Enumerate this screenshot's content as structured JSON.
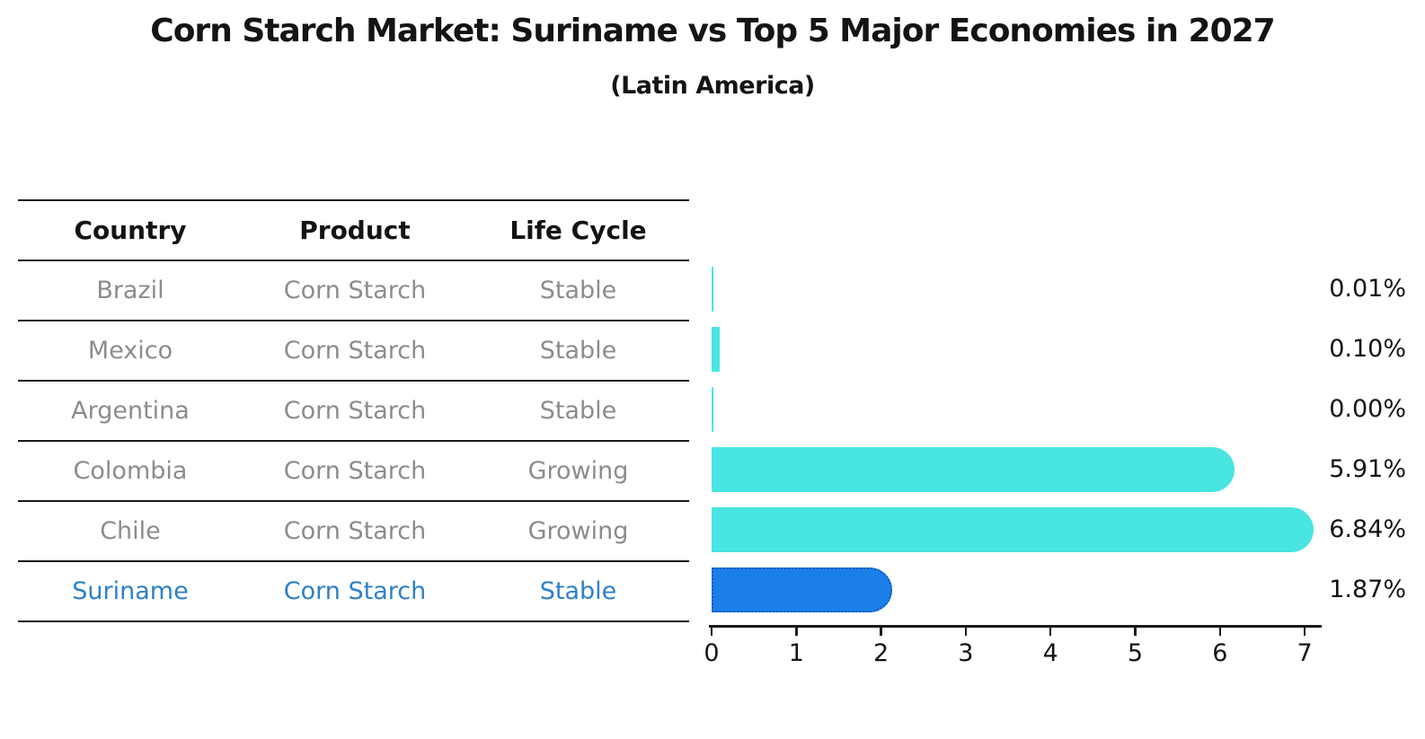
{
  "title": "Corn Starch Market: Suriname vs Top 5 Major Economies in 2027",
  "subtitle": "(Latin America)",
  "table": {
    "headers": [
      "Country",
      "Product",
      "Life Cycle"
    ],
    "rows": [
      {
        "country": "Brazil",
        "product": "Corn Starch",
        "life_cycle": "Stable",
        "highlight": false
      },
      {
        "country": "Mexico",
        "product": "Corn Starch",
        "life_cycle": "Stable",
        "highlight": false
      },
      {
        "country": "Argentina",
        "product": "Corn Starch",
        "life_cycle": "Stable",
        "highlight": false
      },
      {
        "country": "Colombia",
        "product": "Corn Starch",
        "life_cycle": "Growing",
        "highlight": false
      },
      {
        "country": "Chile",
        "product": "Corn Starch",
        "life_cycle": "Growing",
        "highlight": false
      },
      {
        "country": "Suriname",
        "product": "Corn Starch",
        "life_cycle": "Stable",
        "highlight": true
      }
    ]
  },
  "chart_data": {
    "type": "bar",
    "orientation": "horizontal",
    "title": "Corn Starch Market: Suriname vs Top 5 Major Economies in 2027",
    "subtitle": "(Latin America)",
    "categories": [
      "Brazil",
      "Mexico",
      "Argentina",
      "Colombia",
      "Chile",
      "Suriname"
    ],
    "values": [
      0.01,
      0.1,
      0.0,
      5.91,
      6.84,
      1.87
    ],
    "value_labels": [
      "0.01%",
      "0.10%",
      "0.00%",
      "5.91%",
      "6.84%",
      "1.87%"
    ],
    "unit": "percent",
    "x_ticks": [
      "0",
      "1",
      "2",
      "3",
      "4",
      "5",
      "6",
      "7"
    ],
    "xlim": [
      0,
      7.2
    ],
    "grid": false,
    "legend": false,
    "bar_color": "#48E5E1",
    "highlight_index": 5,
    "highlight_color": "#1B7FE8",
    "highlight_border_color": "#1057BE"
  },
  "colors": {
    "background": "#FFFFFF",
    "text": "#141414",
    "muted_text": "#8C8C8C",
    "highlight_text": "#2E80C8",
    "table_line": "#1A1A1A"
  }
}
